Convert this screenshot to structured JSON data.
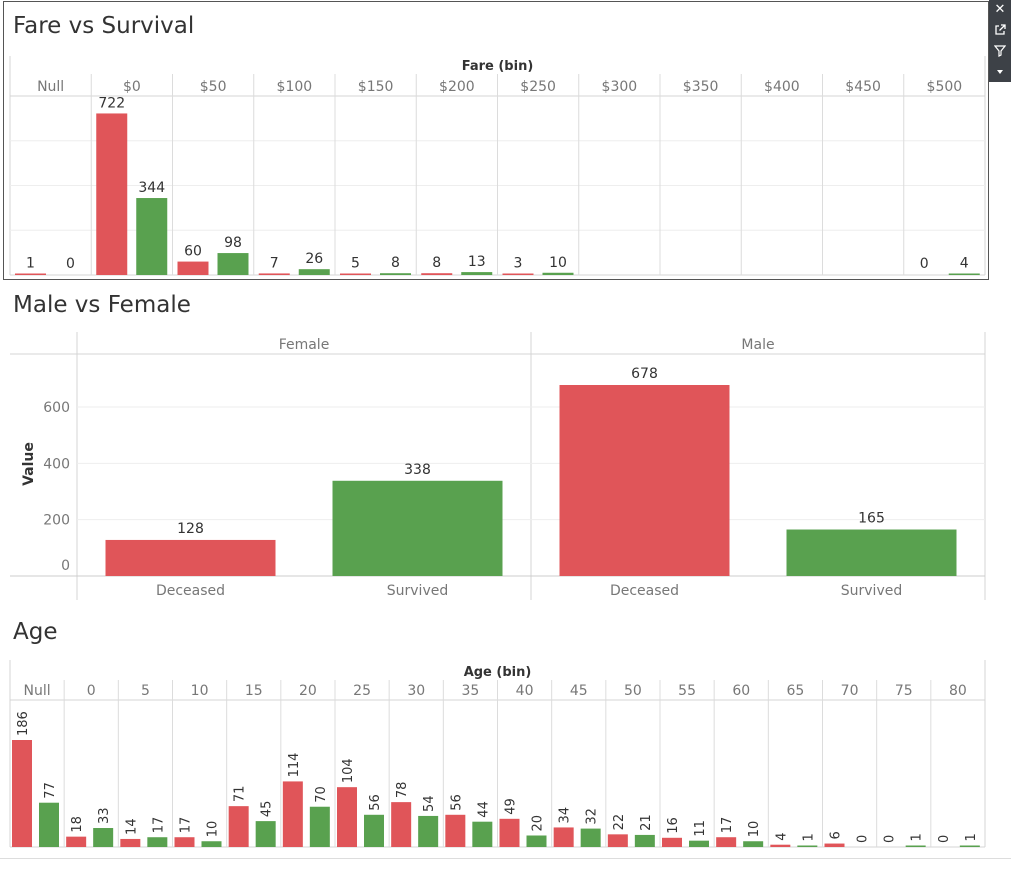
{
  "toolbar": {
    "icons": [
      "close-icon",
      "popout-icon",
      "filter-icon",
      "dropdown-arrow-icon"
    ]
  },
  "colors": {
    "deceased": "#e05559",
    "survived": "#59a14f"
  },
  "chart_data": [
    {
      "id": "fare",
      "type": "bar",
      "title": "Fare vs Survival",
      "column_axis_title": "Fare (bin)",
      "categories": [
        "Null",
        "$0",
        "$50",
        "$100",
        "$150",
        "$200",
        "$250",
        "$300",
        "$350",
        "$400",
        "$450",
        "$500"
      ],
      "series": [
        {
          "color": "#e05559",
          "values": [
            1,
            722,
            60,
            7,
            5,
            8,
            3,
            null,
            null,
            null,
            null,
            0
          ]
        },
        {
          "color": "#59a14f",
          "values": [
            0,
            344,
            98,
            26,
            8,
            13,
            10,
            null,
            null,
            null,
            null,
            4
          ]
        }
      ],
      "ylim": [
        0,
        800
      ],
      "grid": true
    },
    {
      "id": "sex",
      "type": "bar",
      "title": "Male vs Female",
      "ylabel": "Value",
      "y_ticks": [
        "0",
        "200",
        "400",
        "600"
      ],
      "ylim": [
        0,
        700
      ],
      "panels": [
        {
          "name": "Female",
          "categories": [
            "Deceased",
            "Survived"
          ],
          "values": [
            128,
            338
          ]
        },
        {
          "name": "Male",
          "categories": [
            "Deceased",
            "Survived"
          ],
          "values": [
            678,
            165
          ]
        }
      ],
      "grid": true
    },
    {
      "id": "age",
      "type": "bar",
      "title": "Age",
      "column_axis_title": "Age (bin)",
      "categories": [
        "Null",
        "0",
        "5",
        "10",
        "15",
        "20",
        "25",
        "30",
        "35",
        "40",
        "45",
        "50",
        "55",
        "60",
        "65",
        "70",
        "75",
        "80"
      ],
      "series": [
        {
          "color": "#e05559",
          "values": [
            186,
            18,
            14,
            17,
            71,
            114,
            104,
            78,
            56,
            49,
            34,
            22,
            16,
            17,
            4,
            6,
            0,
            0
          ]
        },
        {
          "color": "#59a14f",
          "values": [
            77,
            33,
            17,
            10,
            45,
            70,
            56,
            54,
            44,
            20,
            32,
            21,
            11,
            10,
            1,
            0,
            1,
            1
          ]
        }
      ],
      "ylim": [
        0,
        195
      ],
      "grid": true
    }
  ]
}
